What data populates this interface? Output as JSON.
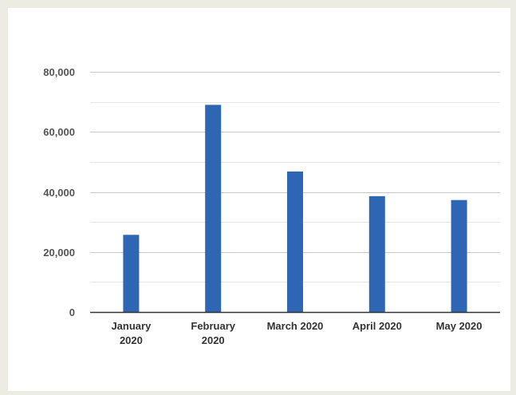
{
  "chart_data": {
    "type": "bar",
    "title": "",
    "xlabel": "",
    "ylabel": "",
    "categories": [
      [
        "January",
        "2020"
      ],
      [
        "February",
        "2020"
      ],
      [
        "March 2020"
      ],
      [
        "April 2020"
      ],
      [
        "May 2020"
      ]
    ],
    "values": [
      25700,
      69000,
      46800,
      38600,
      37300
    ],
    "ylim": [
      0,
      80000
    ],
    "yticks": [
      0,
      20000,
      40000,
      60000,
      80000
    ],
    "ytick_labels": [
      "0",
      "20,000",
      "40,000",
      "60,000",
      "80,000"
    ],
    "minor_gridlines": true,
    "grid": true,
    "legend": "none",
    "colors": {
      "bar": "#2f66b3",
      "major_grid": "#c8c8c8",
      "minor_grid": "#e6e6e6",
      "baseline": "#333333",
      "background": "#ffffff",
      "page_background": "#ecebe4"
    }
  }
}
